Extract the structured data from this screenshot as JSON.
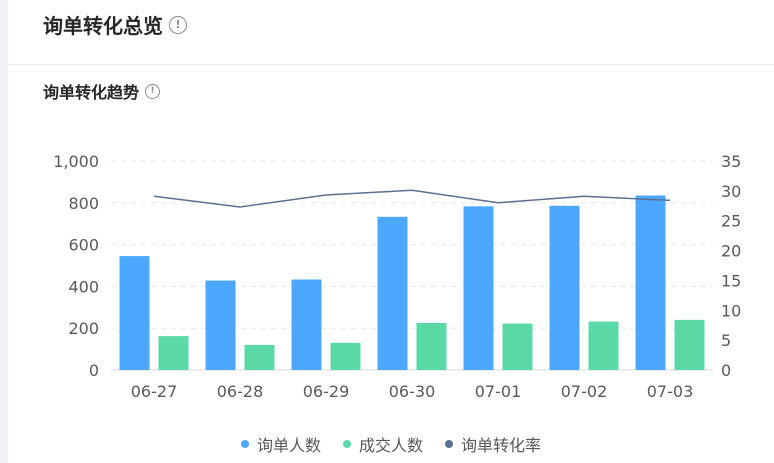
{
  "header": {
    "title": "询单转化总览",
    "info_icon": "info-circle-icon"
  },
  "section": {
    "title": "询单转化趋势",
    "info_icon": "info-circle-icon"
  },
  "colors": {
    "inquiry": "#4ca8ff",
    "deal": "#5ad8a6",
    "rate": "#5b7091"
  },
  "chart_data": {
    "type": "bar",
    "categories": [
      "06-27",
      "06-28",
      "06-29",
      "06-30",
      "07-01",
      "07-02",
      "07-03"
    ],
    "series": [
      {
        "name": "询单人数",
        "type": "bar",
        "axis": "left",
        "values": [
          545,
          428,
          433,
          733,
          783,
          786,
          835
        ]
      },
      {
        "name": "成交人数",
        "type": "bar",
        "axis": "left",
        "values": [
          162,
          120,
          130,
          225,
          222,
          232,
          240
        ]
      },
      {
        "name": "询单转化率",
        "type": "line",
        "axis": "right",
        "values": [
          29.1,
          27.3,
          29.3,
          30.1,
          28.0,
          29.1,
          28.4
        ]
      }
    ],
    "y_left": {
      "min": 0,
      "max": 1000,
      "ticks": [
        "0",
        "200",
        "400",
        "600",
        "800",
        "1,000"
      ]
    },
    "y_right": {
      "min": 0,
      "max": 35,
      "ticks": [
        "0",
        "5",
        "10",
        "15",
        "20",
        "25",
        "30",
        "35"
      ]
    },
    "grid": true,
    "legend_position": "bottom"
  }
}
